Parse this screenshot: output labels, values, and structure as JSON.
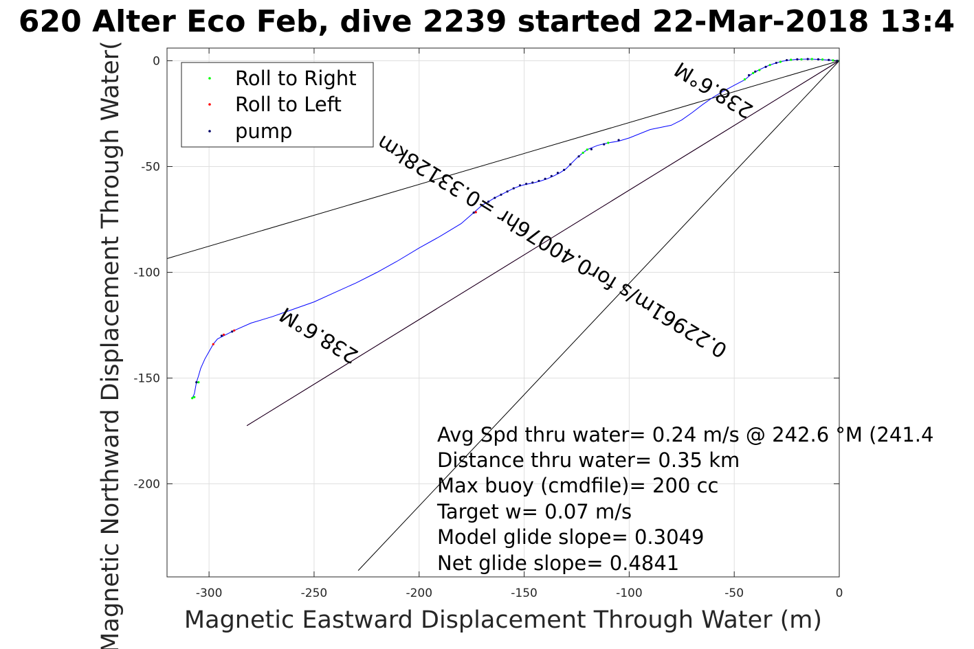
{
  "chart_data": {
    "type": "line",
    "title": "620 Alter Eco Feb, dive 2239 started 22-Mar-2018 13:4",
    "xlabel": "Magnetic Eastward Displacement Through Water (m)",
    "ylabel": "Magnetic Northward Displacement Through Water(",
    "xlim": [
      -320,
      0
    ],
    "ylim": [
      -244,
      6
    ],
    "xticks": [
      -300,
      -250,
      -200,
      -150,
      -100,
      -50,
      0
    ],
    "yticks": [
      0,
      -50,
      -100,
      -150,
      -200
    ],
    "xtick_labels": [
      "-300",
      "-250",
      "-200",
      "-150",
      "-100",
      "-50",
      "0"
    ],
    "ytick_labels": [
      "0",
      "-50",
      "-100",
      "-150",
      "-200"
    ],
    "grid": true,
    "legend_position": "top-left",
    "legend": [
      {
        "label": "Roll to Right",
        "color": "#00ff00"
      },
      {
        "label": "Roll to Left",
        "color": "#ff0000"
      },
      {
        "label": "pump",
        "color": "#000066"
      }
    ],
    "track": {
      "color": "#0000ff",
      "x": [
        0,
        -3,
        -6,
        -9,
        -12,
        -15,
        -18,
        -21,
        -24,
        -27,
        -30,
        -33,
        -36,
        -39,
        -41,
        -42,
        -45,
        -50,
        -55,
        -60,
        -65,
        -70,
        -75,
        -80,
        -90,
        -100,
        -105,
        -110,
        -115,
        -120,
        -122,
        -125,
        -128,
        -130,
        -133,
        -136,
        -139,
        -142,
        -145,
        -148,
        -150,
        -152,
        -155,
        -158,
        -161,
        -164,
        -167,
        -170,
        -174,
        -180,
        -190,
        -200,
        -210,
        -220,
        -230,
        -240,
        -250,
        -260,
        -270,
        -280,
        -288,
        -292,
        -296,
        -298,
        -300,
        -302,
        -304,
        -305,
        -306,
        -307,
        -308
      ],
      "y": [
        0,
        0.2,
        0.4,
        0.6,
        0.7,
        0.8,
        0.7,
        0.6,
        0.3,
        -0.2,
        -1.0,
        -2.0,
        -3.3,
        -4.7,
        -5.8,
        -6.5,
        -9.0,
        -11.6,
        -14.3,
        -17.2,
        -20.7,
        -24.5,
        -28.0,
        -30.5,
        -32.5,
        -36.5,
        -38.0,
        -38.8,
        -40.0,
        -42.0,
        -43.5,
        -46.0,
        -49.0,
        -51.0,
        -53.0,
        -54.5,
        -55.8,
        -56.8,
        -57.6,
        -58.2,
        -58.6,
        -59.2,
        -60.3,
        -61.8,
        -63.3,
        -64.8,
        -66.6,
        -68.3,
        -71.8,
        -77.0,
        -83.0,
        -88.5,
        -94.5,
        -100.0,
        -105.0,
        -109.5,
        -114.0,
        -117.5,
        -121.0,
        -124.0,
        -127.5,
        -129.5,
        -131.5,
        -134.0,
        -137.5,
        -141.0,
        -145.5,
        -149.0,
        -152.0,
        -157.5,
        -159.5
      ]
    },
    "markers": {
      "roll_right": {
        "color": "#00ff00",
        "x": [
          0,
          -3,
          -8,
          -13,
          -18,
          -23,
          -28,
          -33,
          -38,
          -41,
          -45,
          -120,
          -122,
          -110,
          -307,
          -305,
          -308
        ],
        "y": [
          0,
          0.2,
          0.6,
          0.8,
          0.7,
          0.5,
          -0.5,
          -2.0,
          -4.4,
          -5.8,
          -8.8,
          -42,
          -43.5,
          -38.8,
          -159,
          -152,
          -159.5
        ]
      },
      "roll_left": {
        "color": "#ff0000",
        "x": [
          -288,
          -293,
          -298,
          -173
        ],
        "y": [
          -127.5,
          -129.5,
          -134,
          -71.6
        ]
      },
      "pump": {
        "color": "#000066",
        "x": [
          -1,
          -5,
          -10,
          -15,
          -20,
          -25,
          -30,
          -35,
          -40,
          -43,
          -105,
          -112,
          -118,
          -124,
          -128,
          -131,
          -134,
          -137,
          -140,
          -143,
          -146,
          -149,
          -152,
          -155,
          -158,
          -161,
          -164,
          -167,
          -170,
          -174,
          -289,
          -294,
          -306
        ],
        "y": [
          0,
          0.4,
          0.7,
          0.8,
          0.7,
          0.3,
          -1.0,
          -2.9,
          -5.1,
          -6.8,
          -37.5,
          -39.5,
          -41.8,
          -45.2,
          -49,
          -51.6,
          -53,
          -54.5,
          -55.8,
          -56.8,
          -57.6,
          -58.2,
          -58.9,
          -60.3,
          -61.8,
          -63.3,
          -64.8,
          -66.6,
          -68.3,
          -71.8,
          -128,
          -130,
          -152
        ]
      }
    },
    "reference_lines": [
      {
        "color": "#000000",
        "x": [
          0,
          -320
        ],
        "y": [
          0,
          -93.5
        ]
      },
      {
        "color": "#000000",
        "x": [
          0,
          -229
        ],
        "y": [
          0,
          -241
        ]
      },
      {
        "color": "#ff00ff",
        "x": [
          0,
          -282
        ],
        "y": [
          0,
          -172.5
        ]
      },
      {
        "color": "#000000",
        "x": [
          0,
          -282
        ],
        "y": [
          0,
          -172.5
        ]
      }
    ],
    "rotated_labels": [
      {
        "text": "238.6°M",
        "x": -58,
        "y": -11,
        "angle_deg": 211.5
      },
      {
        "text": "0.22961m/s for0.40076hr =0.33128km",
        "x": -135,
        "y": -85,
        "angle_deg": 211.5
      },
      {
        "text": "238.6°M",
        "x": -246,
        "y": -127,
        "angle_deg": 211.5
      }
    ],
    "annotations": [
      "Avg Spd thru water=  0.24 m/s @ 242.6 °M (241.4",
      "Distance thru water=  0.35 km",
      "Max buoy (cmdfile)= 200 cc",
      "Target w= 0.07 m/s",
      "Model glide slope= 0.3049",
      "Net glide slope= 0.4841"
    ]
  }
}
